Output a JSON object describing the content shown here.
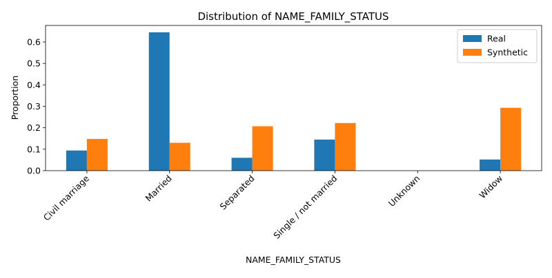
{
  "colors": {
    "real": "#1f77b4",
    "synthetic": "#ff7f0e"
  },
  "chart_data": {
    "type": "bar",
    "title": "Distribution of NAME_FAMILY_STATUS",
    "xlabel": "NAME_FAMILY_STATUS",
    "ylabel": "Proportion",
    "categories": [
      "Civil marriage",
      "Married",
      "Separated",
      "Single / not married",
      "Unknown",
      "Widow"
    ],
    "series": [
      {
        "name": "Real",
        "values": [
          0.094,
          0.645,
          0.06,
          0.145,
          0.0,
          0.052
        ]
      },
      {
        "name": "Synthetic",
        "values": [
          0.148,
          0.13,
          0.207,
          0.222,
          0.0,
          0.293
        ]
      }
    ],
    "yticks": [
      "0.0",
      "0.1",
      "0.2",
      "0.3",
      "0.4",
      "0.5",
      "0.6"
    ],
    "ylim": [
      0,
      0.677
    ],
    "grid": false,
    "legend": "top-right"
  }
}
